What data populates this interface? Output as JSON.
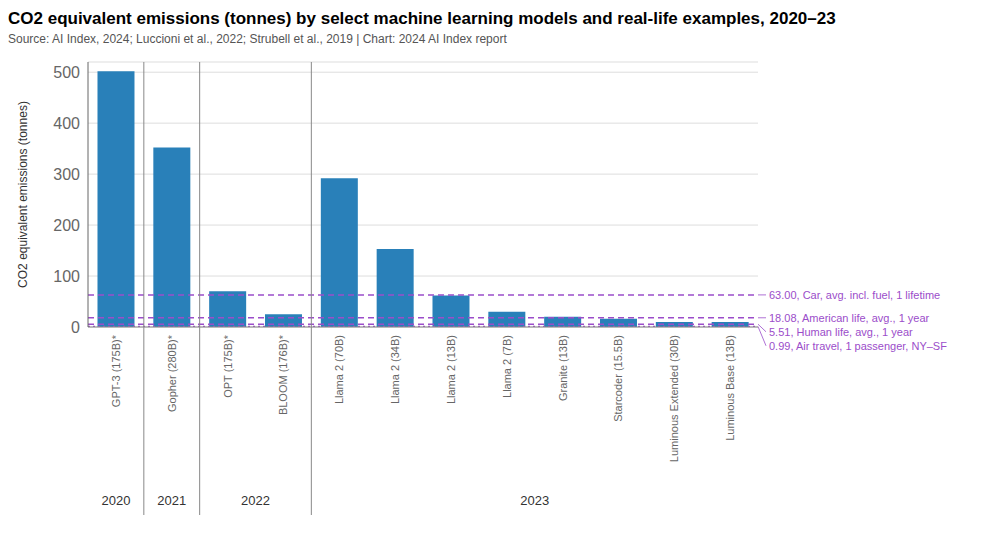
{
  "chart_data": {
    "type": "bar",
    "title": "CO2 equivalent emissions (tonnes) by select machine learning models and real-life examples, 2020–23",
    "subtitle": "Source: AI Index, 2024; Luccioni et al., 2022; Strubell et al., 2019 | Chart: 2024 AI Index report",
    "ylabel": "CO2 equivalent emissions (tonnes)",
    "categories": [
      "GPT-3 (175B)*",
      "Gopher (280B)*",
      "OPT (175B)*",
      "BLOOM (176B)*",
      "Llama 2 (70B)",
      "Llama 2 (34B)",
      "Llama 2 (13B)",
      "Llama 2 (7B)",
      "Granite (13B)",
      "Starcoder (15.5B)",
      "Luminous Extended (30B)",
      "Luminous Base (13B)"
    ],
    "values": [
      502,
      352,
      70,
      25,
      292,
      153,
      62,
      30,
      20,
      16,
      10,
      10
    ],
    "color": "#2980b9",
    "ylim": [
      0,
      520
    ],
    "yticks": [
      0,
      100,
      200,
      300,
      400,
      500
    ],
    "grid": true,
    "groups": [
      {
        "label": "2020",
        "categories": [
          "GPT-3 (175B)*"
        ]
      },
      {
        "label": "2021",
        "categories": [
          "Gopher (280B)*"
        ]
      },
      {
        "label": "2022",
        "categories": [
          "OPT (175B)*",
          "BLOOM (176B)*"
        ]
      },
      {
        "label": "2023",
        "categories": [
          "Llama 2 (70B)",
          "Llama 2 (34B)",
          "Llama 2 (13B)",
          "Llama 2 (7B)",
          "Granite (13B)",
          "Starcoder (15.5B)",
          "Luminous Extended (30B)",
          "Luminous Base (13B)"
        ]
      }
    ],
    "reference_lines": [
      {
        "y": 63.0,
        "label": "63.00, Car, avg. incl. fuel, 1 lifetime",
        "line_style": "dashed",
        "color": "#9b4dca"
      },
      {
        "y": 18.08,
        "label": "18.08, American life, avg., 1 year",
        "line_style": "dashed",
        "color": "#9b4dca"
      },
      {
        "y": 5.51,
        "label": "5.51, Human life, avg., 1 year",
        "line_style": "dashed",
        "color": "#9b4dca"
      },
      {
        "y": 0.99,
        "label": "0.99, Air travel, 1 passenger, NY–SF",
        "line_style": "dotted",
        "color": "#9b4dca"
      }
    ]
  }
}
